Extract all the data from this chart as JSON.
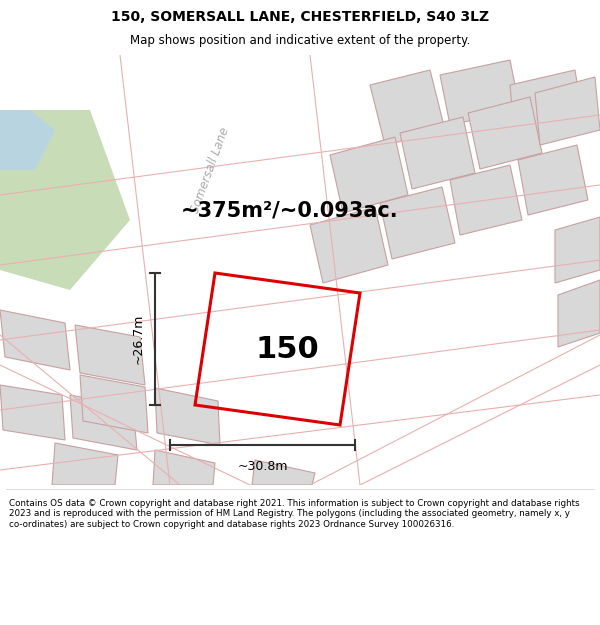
{
  "title": "150, SOMERSALL LANE, CHESTERFIELD, S40 3LZ",
  "subtitle": "Map shows position and indicative extent of the property.",
  "footer": "Contains OS data © Crown copyright and database right 2021. This information is subject to Crown copyright and database rights 2023 and is reproduced with the permission of HM Land Registry. The polygons (including the associated geometry, namely x, y co-ordinates) are subject to Crown copyright and database rights 2023 Ordnance Survey 100026316.",
  "area_text": "~375m²/~0.093ac.",
  "label_150": "150",
  "dim_width": "~30.8m",
  "dim_height": "~26.7m",
  "road_label": "Somersall Lane",
  "map_bg": "#f0eeeb",
  "road_fill": "#ffffff",
  "building_fill": "#d8d8d8",
  "building_stroke": "#c8a0a0",
  "red_plot_color": "#dd0000",
  "green_fill": "#c8dcb8",
  "blue_fill": "#b8d4e0",
  "road_line_color": "#e8b0b0",
  "dim_line_color": "#333333",
  "title_fontsize": 10,
  "subtitle_fontsize": 8.5,
  "footer_fontsize": 6.3
}
